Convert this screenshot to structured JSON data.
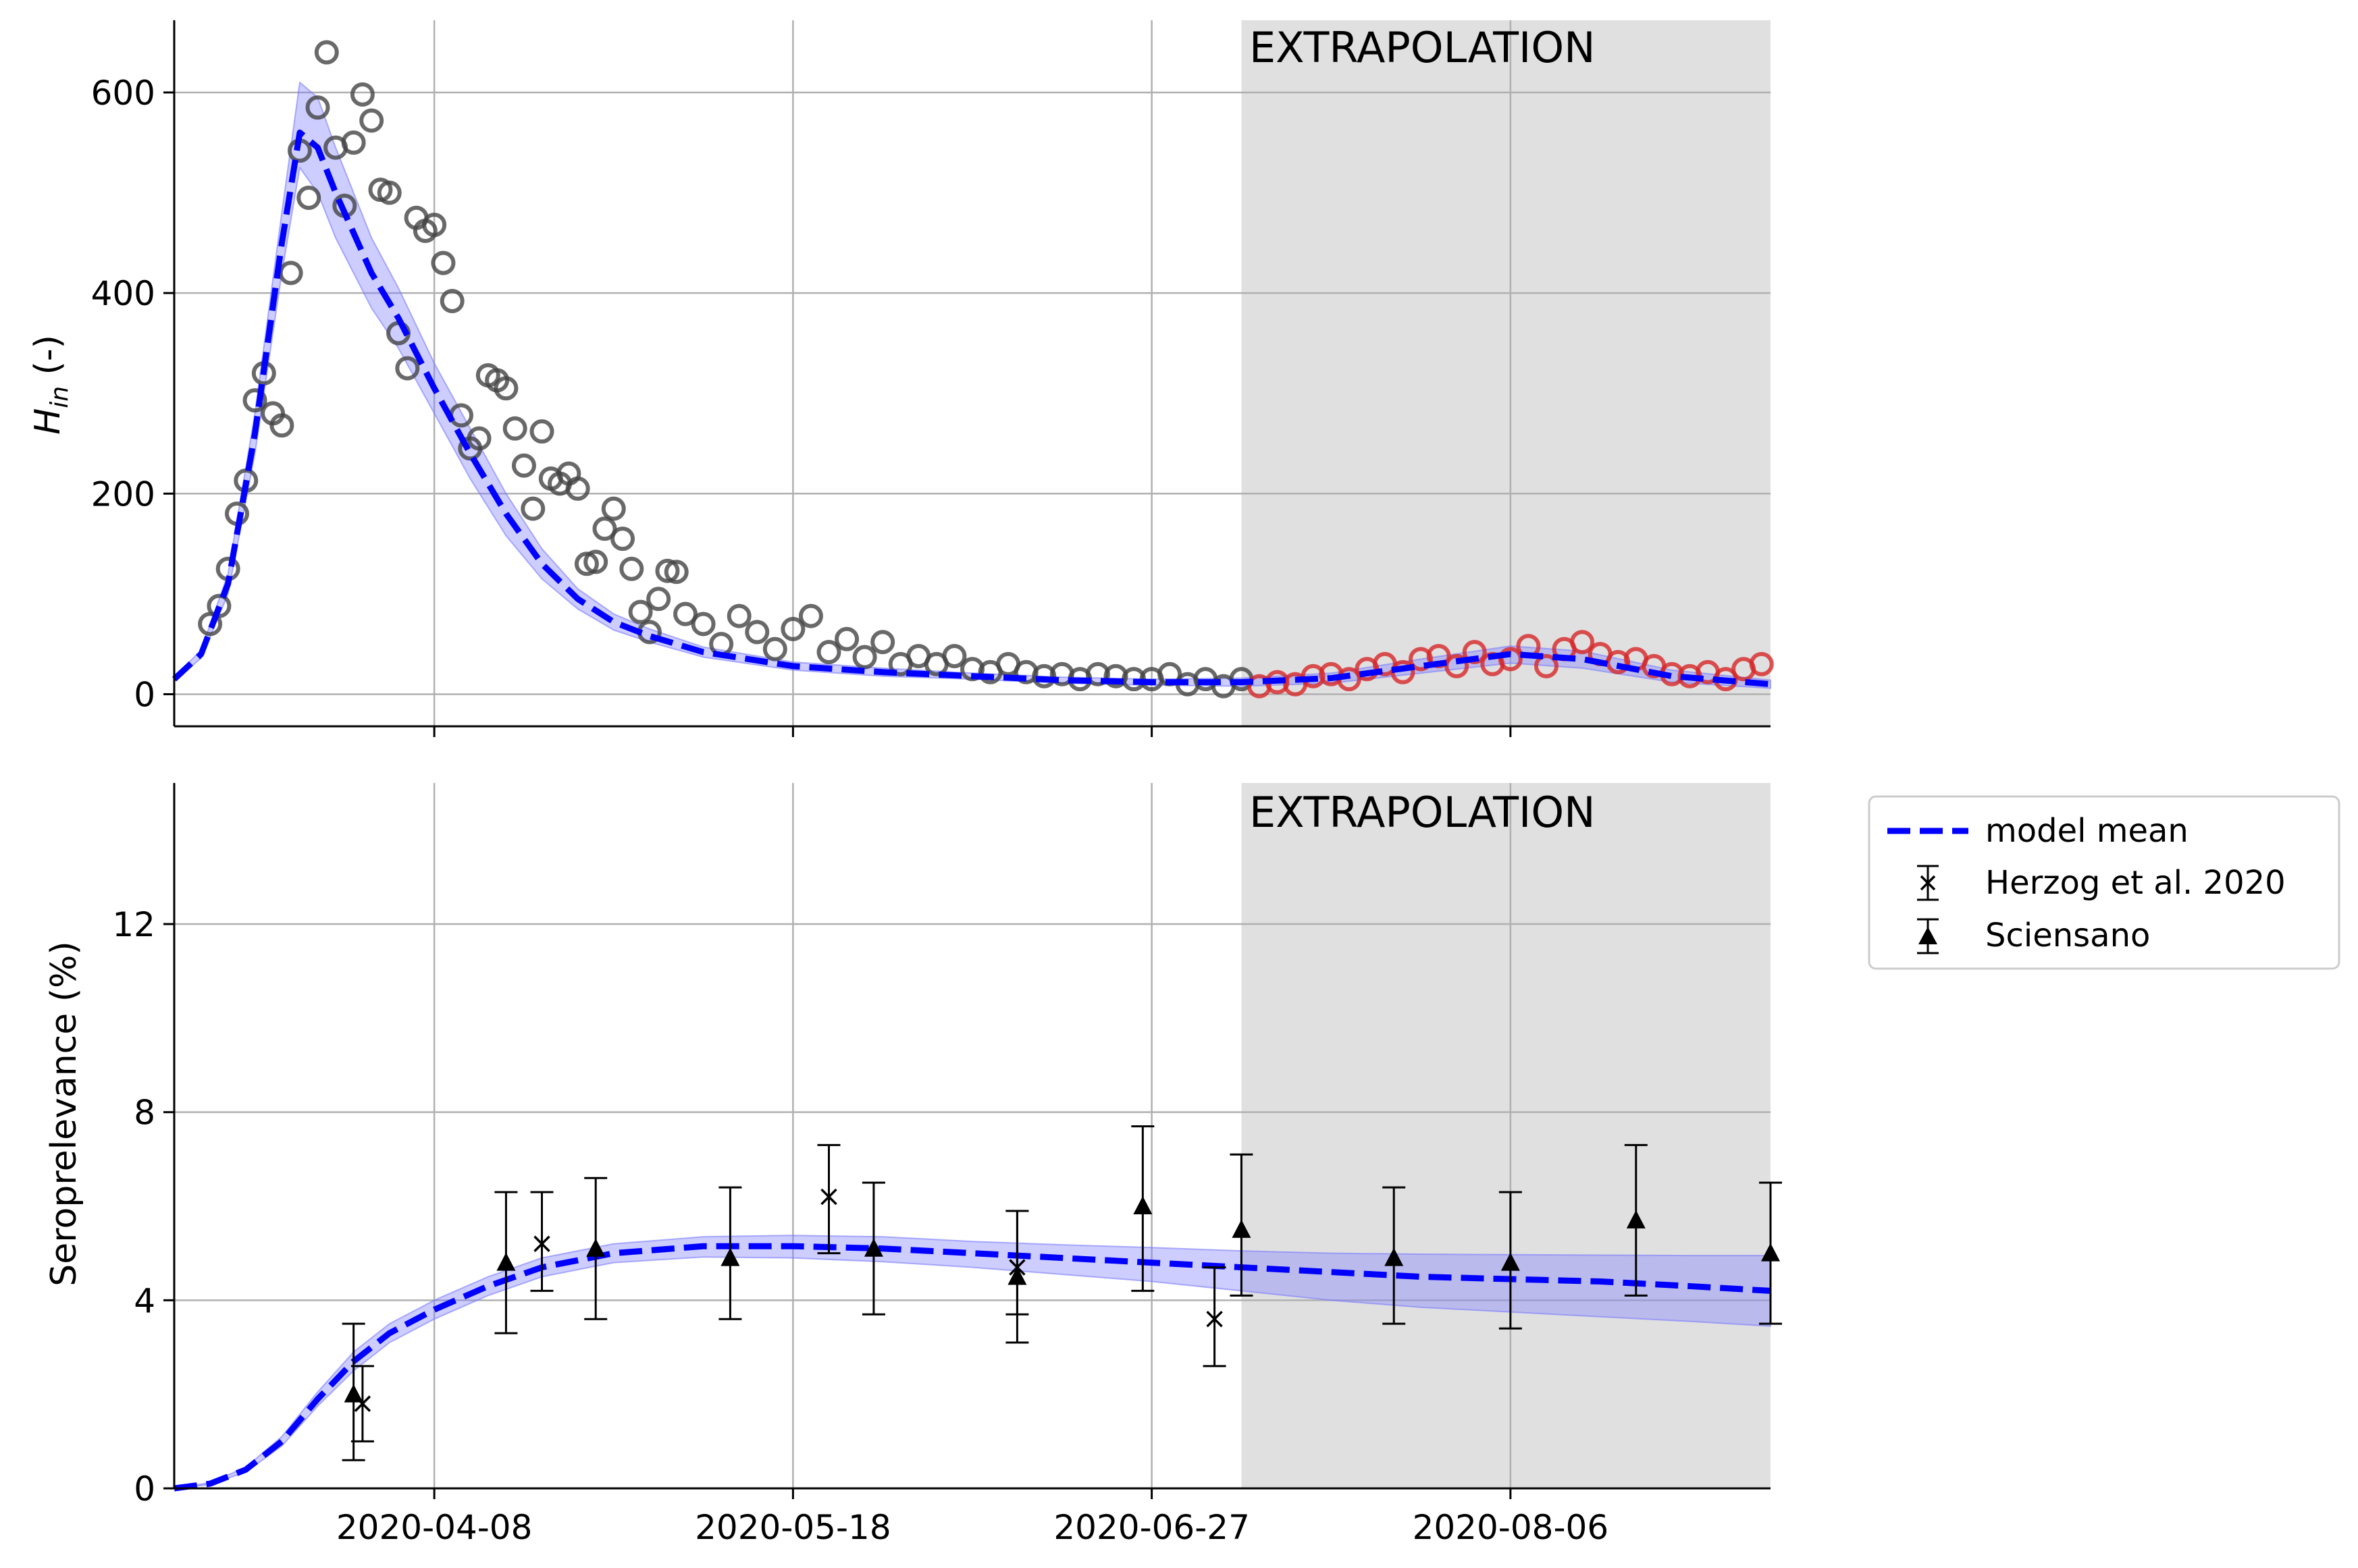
{
  "colors": {
    "model": "#0000ff",
    "band": "#7b7bff",
    "data_calibration": "#444444",
    "data_extrapolation": "#d62728",
    "extrapolation_shade": "#e0e0e0",
    "grid": "#b0b0b0"
  },
  "extrapolation_label": "EXTRAPOLATION",
  "x_tick_labels": [
    "2020-04-08",
    "2020-05-18",
    "2020-06-27",
    "2020-08-06"
  ],
  "chart_data": [
    {
      "type": "line",
      "xlabel": "",
      "ylabel": "H_in (-)",
      "ylabel_main": "H",
      "ylabel_sub": "in",
      "ylabel_suffix": " (-)",
      "xlim": [
        "2020-03-10",
        "2020-09-04"
      ],
      "ylim": [
        -32,
        672
      ],
      "yticks": [
        0,
        200,
        400,
        600
      ],
      "xticks": [
        "2020-04-08",
        "2020-05-18",
        "2020-06-27",
        "2020-08-06"
      ],
      "grid": true,
      "extrapolation_start": "2020-07-07",
      "series": [
        {
          "kind": "model_mean_with_band",
          "x": [
            "2020-03-10",
            "2020-03-13",
            "2020-03-16",
            "2020-03-19",
            "2020-03-22",
            "2020-03-24",
            "2020-03-26",
            "2020-03-28",
            "2020-03-30",
            "2020-04-01",
            "2020-04-04",
            "2020-04-08",
            "2020-04-12",
            "2020-04-16",
            "2020-04-20",
            "2020-04-24",
            "2020-04-28",
            "2020-05-02",
            "2020-05-08",
            "2020-05-18",
            "2020-05-28",
            "2020-06-07",
            "2020-06-17",
            "2020-06-27",
            "2020-07-07",
            "2020-07-17",
            "2020-07-27",
            "2020-08-06",
            "2020-08-14",
            "2020-08-24",
            "2020-09-04"
          ],
          "values": [
            15,
            40,
            110,
            260,
            450,
            560,
            545,
            500,
            460,
            420,
            375,
            305,
            240,
            180,
            130,
            95,
            72,
            58,
            42,
            28,
            22,
            18,
            14,
            12,
            12,
            16,
            28,
            40,
            35,
            18,
            10
          ],
          "lower": [
            13,
            36,
            100,
            240,
            420,
            525,
            500,
            455,
            420,
            385,
            345,
            280,
            215,
            158,
            115,
            85,
            64,
            52,
            37,
            24,
            18,
            15,
            11,
            9,
            8,
            11,
            21,
            31,
            26,
            12,
            6
          ],
          "upper": [
            17,
            44,
            120,
            280,
            480,
            610,
            595,
            545,
            500,
            455,
            405,
            330,
            265,
            200,
            145,
            105,
            80,
            65,
            47,
            32,
            26,
            21,
            17,
            15,
            16,
            21,
            35,
            48,
            43,
            24,
            14
          ]
        },
        {
          "kind": "observed_calibration",
          "x": [
            "2020-03-14",
            "2020-03-15",
            "2020-03-16",
            "2020-03-17",
            "2020-03-18",
            "2020-03-19",
            "2020-03-20",
            "2020-03-21",
            "2020-03-22",
            "2020-03-23",
            "2020-03-24",
            "2020-03-25",
            "2020-03-26",
            "2020-03-27",
            "2020-03-28",
            "2020-03-29",
            "2020-03-30",
            "2020-03-31",
            "2020-04-01",
            "2020-04-02",
            "2020-04-03",
            "2020-04-04",
            "2020-04-05",
            "2020-04-06",
            "2020-04-07",
            "2020-04-08",
            "2020-04-09",
            "2020-04-10",
            "2020-04-11",
            "2020-04-12",
            "2020-04-13",
            "2020-04-14",
            "2020-04-15",
            "2020-04-16",
            "2020-04-17",
            "2020-04-18",
            "2020-04-19",
            "2020-04-20",
            "2020-04-21",
            "2020-04-22",
            "2020-04-23",
            "2020-04-24",
            "2020-04-25",
            "2020-04-26",
            "2020-04-27",
            "2020-04-28",
            "2020-04-29",
            "2020-04-30",
            "2020-05-01",
            "2020-05-02",
            "2020-05-03",
            "2020-05-04",
            "2020-05-05",
            "2020-05-06",
            "2020-05-08",
            "2020-05-10",
            "2020-05-12",
            "2020-05-14",
            "2020-05-16",
            "2020-05-18",
            "2020-05-20",
            "2020-05-22",
            "2020-05-24",
            "2020-05-26",
            "2020-05-28",
            "2020-05-30",
            "2020-06-01",
            "2020-06-03",
            "2020-06-05",
            "2020-06-07",
            "2020-06-09",
            "2020-06-11",
            "2020-06-13",
            "2020-06-15",
            "2020-06-17",
            "2020-06-19",
            "2020-06-21",
            "2020-06-23",
            "2020-06-25",
            "2020-06-27",
            "2020-06-29",
            "2020-07-01",
            "2020-07-03",
            "2020-07-05",
            "2020-07-07"
          ],
          "values": [
            70,
            88,
            125,
            180,
            213,
            293,
            320,
            280,
            268,
            420,
            542,
            495,
            585,
            640,
            545,
            487,
            550,
            598,
            572,
            503,
            500,
            360,
            325,
            475,
            462,
            468,
            430,
            392,
            278,
            245,
            255,
            318,
            313,
            305,
            265,
            228,
            185,
            262,
            215,
            210,
            220,
            205,
            130,
            132,
            165,
            185,
            155,
            125,
            82,
            62,
            95,
            123,
            122,
            80,
            70,
            50,
            78,
            62,
            45,
            65,
            78,
            42,
            55,
            37,
            52,
            30,
            38,
            30,
            38,
            25,
            22,
            30,
            22,
            18,
            20,
            15,
            20,
            18,
            15,
            15,
            20,
            10,
            15,
            8,
            15
          ]
        },
        {
          "kind": "observed_extrapolation",
          "x": [
            "2020-07-09",
            "2020-07-11",
            "2020-07-13",
            "2020-07-15",
            "2020-07-17",
            "2020-07-19",
            "2020-07-21",
            "2020-07-23",
            "2020-07-25",
            "2020-07-27",
            "2020-07-29",
            "2020-07-31",
            "2020-08-02",
            "2020-08-04",
            "2020-08-06",
            "2020-08-08",
            "2020-08-10",
            "2020-08-12",
            "2020-08-14",
            "2020-08-16",
            "2020-08-18",
            "2020-08-20",
            "2020-08-22",
            "2020-08-24",
            "2020-08-26",
            "2020-08-28",
            "2020-08-30",
            "2020-09-01",
            "2020-09-03"
          ],
          "values": [
            8,
            12,
            10,
            18,
            20,
            15,
            25,
            30,
            22,
            35,
            38,
            28,
            42,
            30,
            35,
            48,
            28,
            45,
            52,
            40,
            32,
            35,
            28,
            20,
            18,
            22,
            15,
            25,
            30
          ]
        }
      ]
    },
    {
      "type": "line",
      "xlabel": "",
      "ylabel": "Seroprelevance (%)",
      "xlim": [
        "2020-03-10",
        "2020-09-04"
      ],
      "ylim": [
        0,
        15
      ],
      "yticks": [
        0,
        4,
        8,
        12
      ],
      "xticks": [
        "2020-04-08",
        "2020-05-18",
        "2020-06-27",
        "2020-08-06"
      ],
      "grid": true,
      "extrapolation_start": "2020-07-07",
      "legend": {
        "position": "outside-right",
        "entries": [
          "model mean",
          "Herzog et al. 2020",
          "Sciensano"
        ]
      },
      "series": [
        {
          "name": "model mean",
          "kind": "model_mean_with_band",
          "x": [
            "2020-03-10",
            "2020-03-14",
            "2020-03-18",
            "2020-03-22",
            "2020-03-26",
            "2020-03-30",
            "2020-04-03",
            "2020-04-08",
            "2020-04-14",
            "2020-04-20",
            "2020-04-28",
            "2020-05-08",
            "2020-05-18",
            "2020-05-28",
            "2020-06-07",
            "2020-06-17",
            "2020-06-27",
            "2020-07-07",
            "2020-07-17",
            "2020-07-27",
            "2020-08-06",
            "2020-08-16",
            "2020-08-26",
            "2020-09-04"
          ],
          "values": [
            0.0,
            0.1,
            0.4,
            1.0,
            1.9,
            2.7,
            3.3,
            3.8,
            4.3,
            4.7,
            5.0,
            5.15,
            5.15,
            5.1,
            5.0,
            4.9,
            4.8,
            4.7,
            4.6,
            4.5,
            4.45,
            4.4,
            4.3,
            4.2
          ],
          "lower": [
            0.0,
            0.08,
            0.35,
            0.9,
            1.75,
            2.5,
            3.1,
            3.6,
            4.1,
            4.5,
            4.8,
            4.92,
            4.9,
            4.82,
            4.7,
            4.55,
            4.4,
            4.2,
            4.0,
            3.85,
            3.75,
            3.65,
            3.55,
            3.45
          ],
          "upper": [
            0.0,
            0.12,
            0.45,
            1.1,
            2.05,
            2.9,
            3.5,
            4.0,
            4.5,
            4.9,
            5.2,
            5.35,
            5.38,
            5.35,
            5.25,
            5.18,
            5.12,
            5.05,
            5.0,
            4.98,
            4.97,
            4.96,
            4.95,
            4.95
          ]
        },
        {
          "name": "Herzog et al. 2020",
          "kind": "errorbar",
          "marker": "x",
          "x": [
            "2020-03-31",
            "2020-04-20",
            "2020-05-22",
            "2020-06-12",
            "2020-07-04"
          ],
          "values": [
            1.8,
            5.2,
            6.2,
            4.7,
            3.6
          ],
          "lower": [
            1.0,
            4.2,
            5.0,
            3.7,
            2.6
          ],
          "upper": [
            2.6,
            6.3,
            7.3,
            5.9,
            4.7
          ]
        },
        {
          "name": "Sciensano",
          "kind": "errorbar",
          "marker": "triangle",
          "x": [
            "2020-03-30",
            "2020-04-16",
            "2020-04-26",
            "2020-05-11",
            "2020-05-27",
            "2020-06-12",
            "2020-06-26",
            "2020-07-07",
            "2020-07-24",
            "2020-08-06",
            "2020-08-20",
            "2020-09-04"
          ],
          "values": [
            2.0,
            4.8,
            5.1,
            4.9,
            5.1,
            4.5,
            6.0,
            5.5,
            4.9,
            4.8,
            5.7,
            5.0
          ],
          "lower": [
            0.6,
            3.3,
            3.6,
            3.6,
            3.7,
            3.1,
            4.2,
            4.1,
            3.5,
            3.4,
            4.1,
            3.5
          ],
          "upper": [
            3.5,
            6.3,
            6.6,
            6.4,
            6.5,
            5.9,
            7.7,
            7.1,
            6.4,
            6.3,
            7.3,
            6.5
          ]
        }
      ]
    }
  ]
}
